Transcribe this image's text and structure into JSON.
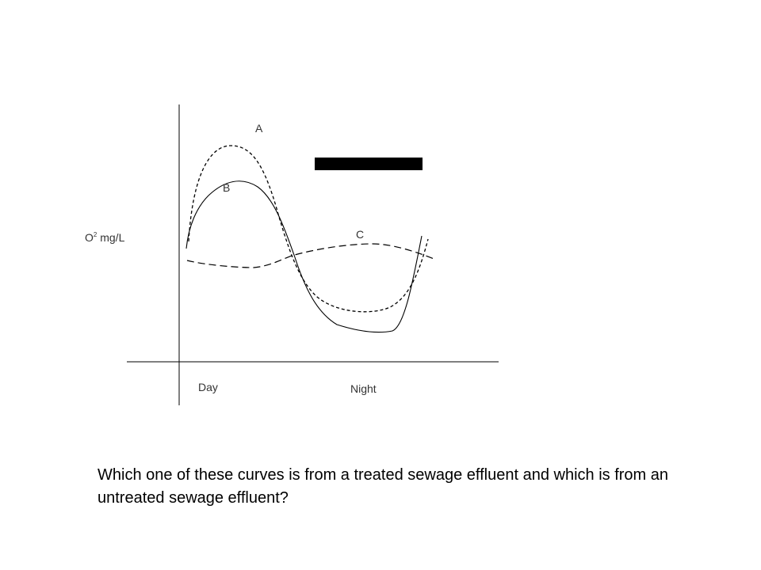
{
  "curves": {
    "a_label": "A",
    "b_label": "B",
    "c_label": "C"
  },
  "axes": {
    "y_label": "O",
    "y_sup": "2",
    "y_unit": " mg/L",
    "x_day": "Day",
    "x_night": "Night"
  },
  "question": "Which one of these curves is from a treated sewage effluent and which is from an untreated sewage effluent?",
  "colors": {
    "line": "#000000",
    "redaction": "#000000"
  }
}
